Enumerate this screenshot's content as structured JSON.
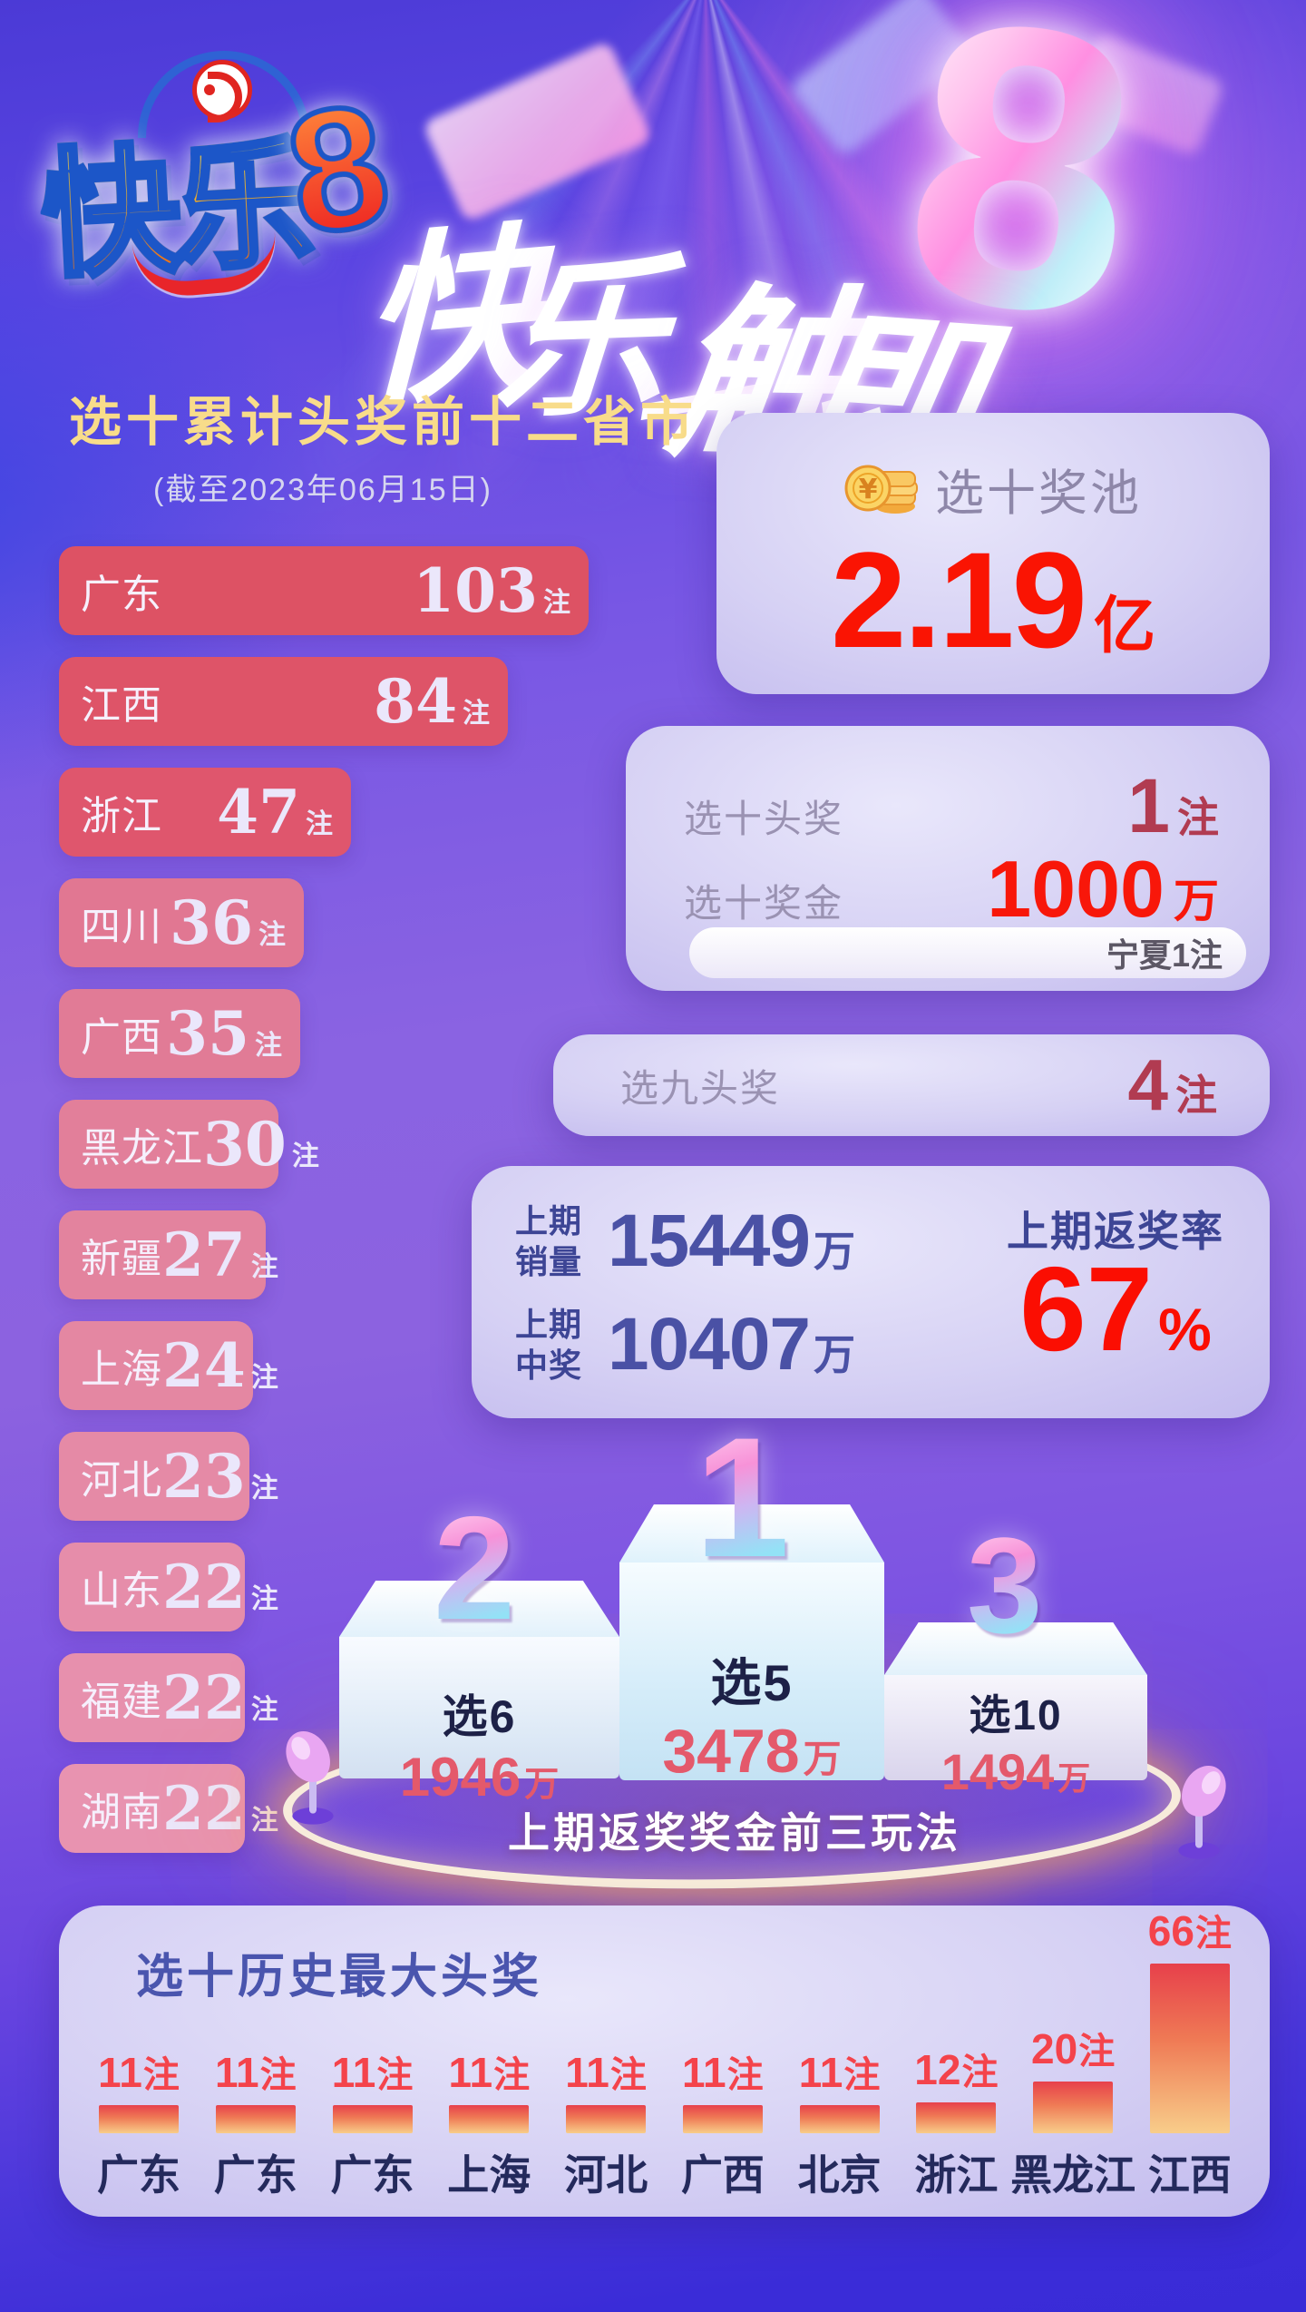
{
  "header": {
    "logo_text": "快乐",
    "logo_eight": "8",
    "slogan_text": "快乐一触即",
    "slogan_eight": "8"
  },
  "pool_panel": {
    "label": "选十奖池",
    "value": "2.19",
    "unit": "亿"
  },
  "prize_panel": {
    "rows": [
      {
        "label": "选十头奖",
        "value": "1",
        "unit": "注"
      },
      {
        "label": "选十奖金",
        "value": "1000",
        "unit": "万"
      }
    ],
    "note": "宁夏1注"
  },
  "nine_panel": {
    "label": "选九头奖",
    "value": "4",
    "unit": "注"
  },
  "stats_panel": {
    "sales_label": [
      "上期",
      "销量"
    ],
    "sales_value": "15449",
    "sales_unit": "万",
    "win_label": [
      "上期",
      "中奖"
    ],
    "win_value": "10407",
    "win_unit": "万",
    "rate_label": "上期返奖率",
    "rate_value": "67",
    "rate_unit": "%"
  },
  "chart_data": [
    {
      "id": "province_top12",
      "type": "bar",
      "orientation": "horizontal",
      "title": "选十累计头奖前十二省市",
      "subtitle": "(截至2023年06月15日)",
      "unit": "注",
      "categories": [
        "广东",
        "江西",
        "浙江",
        "四川",
        "广西",
        "黑龙江",
        "新疆",
        "上海",
        "河北",
        "山东",
        "福建",
        "湖南"
      ],
      "values": [
        103,
        84,
        47,
        36,
        35,
        30,
        27,
        24,
        23,
        22,
        22,
        22
      ],
      "legend": "none",
      "grid": false
    },
    {
      "id": "payout_top3_podium",
      "type": "bar",
      "title": "上期返奖奖金前三玩法",
      "unit": "万",
      "ranks": [
        "1",
        "2",
        "3"
      ],
      "categories": [
        "选5",
        "选6",
        "选10"
      ],
      "values": [
        3478,
        1946,
        1494
      ],
      "legend": "none",
      "grid": false
    },
    {
      "id": "history_max_first_prize",
      "type": "bar",
      "orientation": "vertical",
      "title": "选十历史最大头奖",
      "unit": "注",
      "categories": [
        "广东",
        "广东",
        "广东",
        "上海",
        "河北",
        "广西",
        "北京",
        "浙江",
        "黑龙江",
        "江西"
      ],
      "values": [
        11,
        11,
        11,
        11,
        11,
        11,
        11,
        12,
        20,
        66
      ],
      "legend": "none",
      "grid": false
    }
  ],
  "colors": {
    "accent_red": "#f8170a",
    "dark_red": "#b13b51",
    "gold_title": "#f8dc8a",
    "indigo_label": "#3d4595",
    "indigo_number": "#4a51a5",
    "podium_amount": "#e4596b",
    "podium_game": "#1d2147",
    "history_value": "#f4434b",
    "history_name": "#242a5c",
    "history_title": "#4a55ae",
    "history_bar_gradient": [
      "#e7404b",
      "#f8cd8a"
    ],
    "province_bar_text": "#ebe7fb",
    "province_bars": [
      "#dd5264",
      "#de5468",
      "#df566d",
      "#e17792",
      "#e17b96",
      "#e27f9a",
      "#e3839e",
      "#e487a2",
      "#e58aa6",
      "#e68daa",
      "#e790ad",
      "#e893b0"
    ]
  }
}
